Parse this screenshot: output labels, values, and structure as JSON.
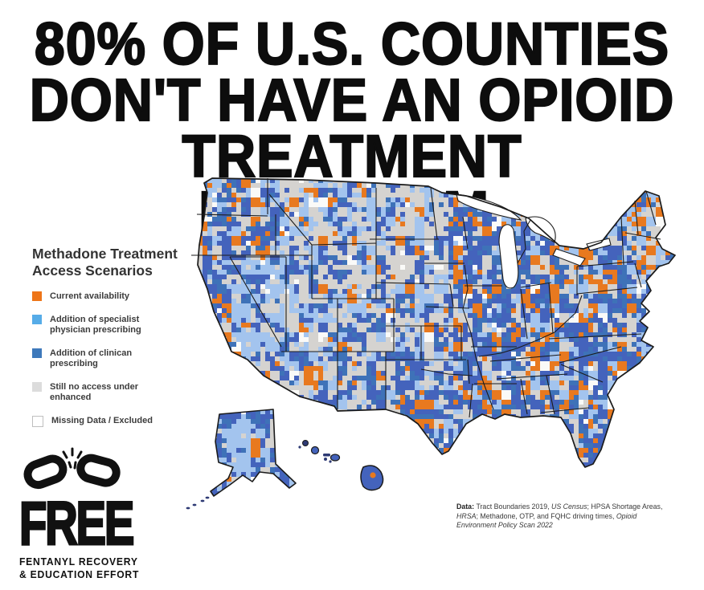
{
  "page": {
    "background": "#ffffff"
  },
  "headline": {
    "lines": [
      "80% OF U.S. COUNTIES",
      "DON'T HAVE AN OPIOID",
      "TREATMENT PROGRAM."
    ]
  },
  "legend": {
    "title_lines": [
      "Methadone Treatment",
      "Access Scenarios"
    ],
    "items": [
      {
        "label": "Current availability",
        "color": "#EE7518"
      },
      {
        "label": "Addition of specialist physician prescribing",
        "color": "#56ACE8"
      },
      {
        "label": "Addition of clinican prescribing",
        "color": "#3E79BB"
      },
      {
        "label": "Still no access under enhanced",
        "color": "#DCDCDC"
      },
      {
        "label": "Missing Data / Excluded",
        "color": "#FFFFFF",
        "border": "#BFBFBF"
      }
    ]
  },
  "map": {
    "name": "U.S. county-level choropleth of methadone treatment access scenarios, with Alaska and Hawaii insets",
    "palette": {
      "gray": "#D5D3D0",
      "light_blue": "#A3C4EE",
      "blue": "#4463BC",
      "blue_alt": "#3E72B8",
      "orange": "#E8791F",
      "white": "#FAFAF8",
      "outline": "#1B1B1B",
      "island_dark": "#2E3A74"
    }
  },
  "logo": {
    "word": "FREE",
    "tagline_lines": [
      "FENTANYL RECOVERY",
      "& EDUCATION EFFORT"
    ],
    "icon": "broken-chain-icon"
  },
  "source_note": {
    "segments": [
      {
        "text": "Data: ",
        "bold": true
      },
      {
        "text": "Tract Boundaries 2019, "
      },
      {
        "text": "US Census",
        "italic": true
      },
      {
        "text": "; HPSA Shortage Areas, "
      },
      {
        "text": "HRSA",
        "italic": true
      },
      {
        "text": "; Methadone, OTP, and FQHC driving times, "
      },
      {
        "text": "Opioid Environment Policy Scan 2022",
        "italic": true
      }
    ]
  },
  "chart_data": {
    "type": "heatmap",
    "subtype": "county-choropleth-map",
    "title": "Methadone Treatment Access Scenarios",
    "region": "United States counties (lower 48 plus Alaska and Hawaii insets)",
    "headline_stat": "80% of U.S. counties don't have an opioid treatment program.",
    "categories": [
      {
        "label": "Current availability",
        "color": "#EE7518"
      },
      {
        "label": "Addition of specialist physician prescribing",
        "color": "#56ACE8"
      },
      {
        "label": "Addition of clinican prescribing",
        "color": "#3E79BB"
      },
      {
        "label": "Still no access under enhanced",
        "color": "#DCDCDC"
      },
      {
        "label": "Missing Data / Excluded",
        "color": "#FFFFFF"
      }
    ],
    "legend_position": "left",
    "pattern_summary": "Eastern U.S. dominated by blue (clinician prescribing) with orange clusters (current availability) in metros and the Northeast; Great Plains and Mountain West mostly gray (still no access) with light-blue patches (specialist physician prescribing); Nevada and central Alaska largely light blue",
    "source": "Data: Tract Boundaries 2019, US Census; HPSA Shortage Areas, HRSA; Methadone, OTP, and FQHC driving times, Opioid Environment Policy Scan 2022"
  }
}
